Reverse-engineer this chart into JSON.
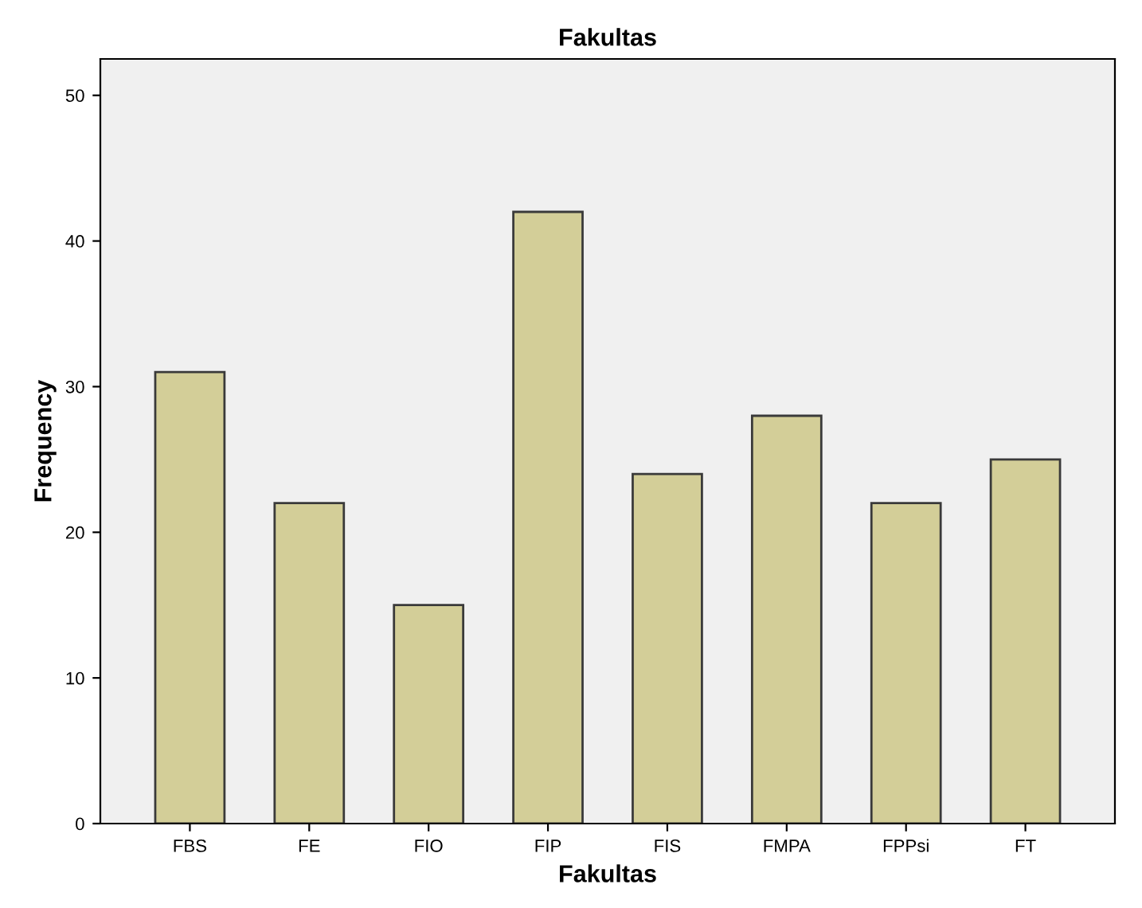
{
  "chart_data": {
    "type": "bar",
    "title": "Fakultas",
    "xlabel": "Fakultas",
    "ylabel": "Frequency",
    "categories": [
      "FBS",
      "FE",
      "FIO",
      "FIP",
      "FIS",
      "FMPA",
      "FPPsi",
      "FT"
    ],
    "values": [
      31,
      22,
      15,
      42,
      24,
      28,
      22,
      25
    ],
    "color": "#d3ce98",
    "ylim": [
      0,
      52.5
    ],
    "yticks": [
      0,
      10,
      20,
      30,
      40,
      50
    ],
    "grid": false,
    "legend": false
  }
}
